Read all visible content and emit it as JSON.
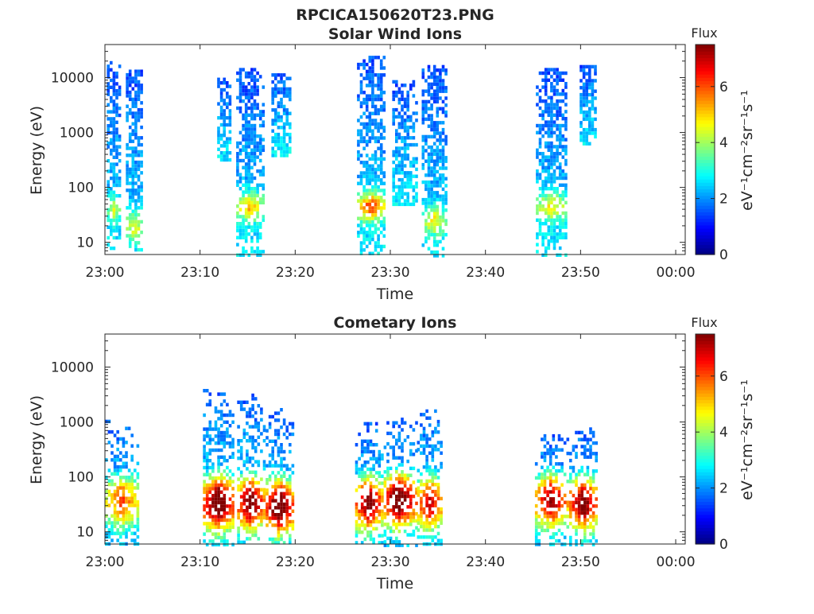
{
  "figure_title": "RPCICA150620T23.PNG",
  "chart_data": [
    {
      "type": "heatmap",
      "title": "Solar Wind Ions",
      "xlabel": "Time",
      "ylabel": "Energy (eV)",
      "x_ticks": [
        "23:00",
        "23:10",
        "23:20",
        "23:30",
        "23:40",
        "23:50",
        "00:00"
      ],
      "x_range_minutes": [
        0,
        61
      ],
      "y_scale": "log",
      "y_ticks": [
        {
          "value": 10,
          "label": "10"
        },
        {
          "value": 100,
          "label": "100"
        },
        {
          "value": 1000,
          "label": "1000"
        },
        {
          "value": 10000,
          "label": "10000"
        }
      ],
      "y_range": [
        6,
        40000
      ],
      "colorbar": {
        "title": "Flux",
        "label": "eV⁻¹cm⁻²sr⁻¹s⁻¹",
        "ticks": [
          "0",
          "2",
          "4",
          "6"
        ],
        "range": [
          0,
          7.5
        ],
        "colormap": "jet"
      },
      "bursts": [
        {
          "t_start": 0.2,
          "t_end": 1.6,
          "e_min": 6,
          "e_max": 20000,
          "peak_value": 4.5,
          "low_band_e": 40
        },
        {
          "t_start": 2.2,
          "t_end": 4.0,
          "e_min": 6,
          "e_max": 14000,
          "peak_value": 4.7,
          "low_band_e": 20
        },
        {
          "t_start": 11.8,
          "t_end": 13.2,
          "e_min": 300,
          "e_max": 10000,
          "peak_value": 1.8,
          "low_band_e": 0
        },
        {
          "t_start": 13.8,
          "t_end": 16.6,
          "e_min": 6,
          "e_max": 15000,
          "peak_value": 5.5,
          "low_band_e": 45
        },
        {
          "t_start": 17.5,
          "t_end": 19.4,
          "e_min": 400,
          "e_max": 12000,
          "peak_value": 1.6,
          "low_band_e": 0
        },
        {
          "t_start": 26.5,
          "t_end": 29.5,
          "e_min": 6,
          "e_max": 25000,
          "peak_value": 6.5,
          "low_band_e": 45
        },
        {
          "t_start": 30.2,
          "t_end": 32.8,
          "e_min": 50,
          "e_max": 9000,
          "peak_value": 2.2,
          "low_band_e": 0
        },
        {
          "t_start": 33.3,
          "t_end": 36.0,
          "e_min": 6,
          "e_max": 17000,
          "peak_value": 4.8,
          "low_band_e": 25
        },
        {
          "t_start": 45.3,
          "t_end": 48.6,
          "e_min": 6,
          "e_max": 15000,
          "peak_value": 5.0,
          "low_band_e": 45
        },
        {
          "t_start": 49.9,
          "t_end": 51.6,
          "e_min": 600,
          "e_max": 17000,
          "peak_value": 1.6,
          "low_band_e": 0
        }
      ]
    },
    {
      "type": "heatmap",
      "title": "Cometary Ions",
      "xlabel": "Time",
      "ylabel": "Energy (eV)",
      "x_ticks": [
        "23:00",
        "23:10",
        "23:20",
        "23:30",
        "23:40",
        "23:50",
        "00:00"
      ],
      "x_range_minutes": [
        0,
        61
      ],
      "y_scale": "log",
      "y_ticks": [
        {
          "value": 10,
          "label": "10"
        },
        {
          "value": 100,
          "label": "100"
        },
        {
          "value": 1000,
          "label": "1000"
        },
        {
          "value": 10000,
          "label": "10000"
        }
      ],
      "y_range": [
        6,
        40000
      ],
      "colorbar": {
        "title": "Flux",
        "label": "eV⁻¹cm⁻²sr⁻¹s⁻¹",
        "ticks": [
          "0",
          "2",
          "4",
          "6"
        ],
        "range": [
          0,
          7.5
        ],
        "colormap": "jet"
      },
      "bursts": [
        {
          "t_start": 0.0,
          "t_end": 3.6,
          "e_min": 6,
          "e_max": 1100,
          "peak_value": 5.0,
          "peak_e": 40
        },
        {
          "t_start": 10.3,
          "t_end": 13.6,
          "e_min": 6,
          "e_max": 4000,
          "peak_value": 7.2,
          "peak_e": 35
        },
        {
          "t_start": 13.9,
          "t_end": 16.7,
          "e_min": 6,
          "e_max": 3300,
          "peak_value": 6.8,
          "peak_e": 35
        },
        {
          "t_start": 16.9,
          "t_end": 19.8,
          "e_min": 6,
          "e_max": 1800,
          "peak_value": 7.2,
          "peak_e": 30
        },
        {
          "t_start": 26.3,
          "t_end": 29.2,
          "e_min": 6,
          "e_max": 1000,
          "peak_value": 6.8,
          "peak_e": 35
        },
        {
          "t_start": 29.3,
          "t_end": 32.7,
          "e_min": 6,
          "e_max": 1200,
          "peak_value": 7.3,
          "peak_e": 40
        },
        {
          "t_start": 32.8,
          "t_end": 35.5,
          "e_min": 6,
          "e_max": 1700,
          "peak_value": 6.0,
          "peak_e": 35
        },
        {
          "t_start": 45.2,
          "t_end": 48.7,
          "e_min": 6,
          "e_max": 600,
          "peak_value": 6.5,
          "peak_e": 40
        },
        {
          "t_start": 48.8,
          "t_end": 51.8,
          "e_min": 6,
          "e_max": 800,
          "peak_value": 6.8,
          "peak_e": 35
        }
      ]
    }
  ]
}
